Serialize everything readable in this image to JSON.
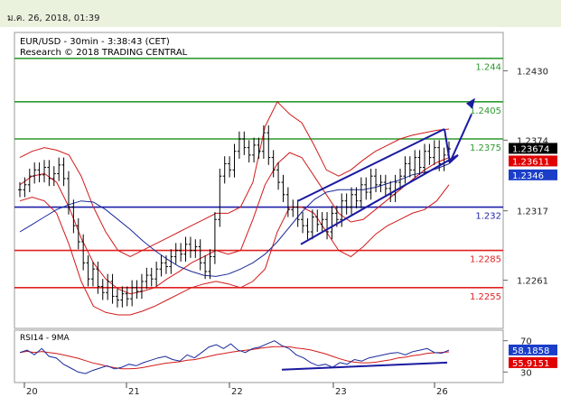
{
  "header": {
    "datetime": "ม.ค. 26, 2018, 01:39"
  },
  "chart_data": [
    {
      "type": "candlestick",
      "title": "EUR/USD - 30min - 3:38:43 (CET)",
      "subtitle": "Research © 2018 TRADING CENTRAL",
      "x_tick_labels": [
        "20",
        "21",
        "22",
        "23",
        "26"
      ],
      "y_tick_labels": [
        "1.2430",
        "1.2374",
        "1.2317",
        "1.2261"
      ],
      "ylim": [
        1.2225,
        1.2458
      ],
      "levels": [
        {
          "label": "1.244",
          "value": 1.244,
          "color": "#2e9a2e"
        },
        {
          "label": "1.2405",
          "value": 1.2405,
          "color": "#2e9a2e"
        },
        {
          "label": "1.2375",
          "value": 1.2375,
          "color": "#2e9a2e"
        },
        {
          "label": "1.232",
          "value": 1.232,
          "color": "#1f1fa8"
        },
        {
          "label": "1.2285",
          "value": 1.2285,
          "color": "#e02020"
        },
        {
          "label": "1.2255",
          "value": 1.2255,
          "color": "#e02020"
        }
      ],
      "price_badges": [
        {
          "label": "1.23674",
          "value": 1.23674,
          "color": "#000000"
        },
        {
          "label": "1.23611",
          "value": 1.23611,
          "color": "#e00000"
        },
        {
          "label": "1.2346",
          "value": 1.2346,
          "color": "#1a3ec8"
        }
      ],
      "close_series": [
        1.2334,
        1.2338,
        1.2345,
        1.235,
        1.2346,
        1.2352,
        1.2343,
        1.2347,
        1.2354,
        1.2343,
        1.232,
        1.2305,
        1.2292,
        1.2275,
        1.2262,
        1.227,
        1.2256,
        1.2251,
        1.226,
        1.2248,
        1.2245,
        1.225,
        1.2246,
        1.2255,
        1.2252,
        1.226,
        1.2265,
        1.2262,
        1.227,
        1.2275,
        1.2272,
        1.228,
        1.2285,
        1.2282,
        1.229,
        1.2285,
        1.2288,
        1.2275,
        1.2268,
        1.228,
        1.231,
        1.2345,
        1.2355,
        1.235,
        1.2365,
        1.2375,
        1.2368,
        1.2362,
        1.237,
        1.2365,
        1.238,
        1.236,
        1.235,
        1.234,
        1.233,
        1.2318,
        1.232,
        1.231,
        1.2305,
        1.23,
        1.2312,
        1.2306,
        1.231,
        1.23,
        1.2315,
        1.231,
        1.2325,
        1.232,
        1.233,
        1.2325,
        1.2338,
        1.2332,
        1.2345,
        1.2338,
        1.234,
        1.2335,
        1.233,
        1.234,
        1.2345,
        1.2355,
        1.235,
        1.236,
        1.2352,
        1.2365,
        1.236,
        1.2368,
        1.2355,
        1.2362,
        1.2367
      ],
      "moving_average_blue": [
        1.23,
        1.2306,
        1.2312,
        1.2318,
        1.2322,
        1.2325,
        1.2324,
        1.2318,
        1.231,
        1.2302,
        1.2293,
        1.2285,
        1.2278,
        1.2272,
        1.2268,
        1.2265,
        1.2264,
        1.2266,
        1.227,
        1.2275,
        1.2282,
        1.2292,
        1.2304,
        1.2316,
        1.2326,
        1.2332,
        1.2334,
        1.2334,
        1.2334,
        1.2336,
        1.2339,
        1.2342,
        1.2346,
        1.2348,
        1.2351,
        1.2355
      ],
      "ma_red": [
        1.2338,
        1.2345,
        1.2347,
        1.234,
        1.232,
        1.2295,
        1.2275,
        1.2262,
        1.2254,
        1.225,
        1.2252,
        1.2255,
        1.2262,
        1.2268,
        1.2275,
        1.228,
        1.2285,
        1.2282,
        1.2285,
        1.231,
        1.2338,
        1.2355,
        1.2364,
        1.236,
        1.2345,
        1.233,
        1.2315,
        1.2308,
        1.231,
        1.2318,
        1.2326,
        1.2334,
        1.2342,
        1.235,
        1.2356,
        1.236
      ],
      "bollinger_upper": [
        1.236,
        1.2365,
        1.2368,
        1.2366,
        1.2362,
        1.2345,
        1.232,
        1.23,
        1.2285,
        1.228,
        1.2285,
        1.229,
        1.2295,
        1.23,
        1.2305,
        1.231,
        1.2315,
        1.2315,
        1.232,
        1.234,
        1.2385,
        1.2405,
        1.2395,
        1.2388,
        1.237,
        1.235,
        1.2345,
        1.235,
        1.2358,
        1.2365,
        1.237,
        1.2375,
        1.2378,
        1.238,
        1.2382,
        1.2383
      ],
      "bollinger_lower": [
        1.2325,
        1.2328,
        1.2325,
        1.2315,
        1.229,
        1.226,
        1.224,
        1.2235,
        1.2233,
        1.2233,
        1.2236,
        1.224,
        1.2245,
        1.225,
        1.2255,
        1.2258,
        1.226,
        1.2258,
        1.2255,
        1.226,
        1.227,
        1.23,
        1.232,
        1.232,
        1.2315,
        1.23,
        1.2285,
        1.228,
        1.2288,
        1.2298,
        1.2305,
        1.231,
        1.2315,
        1.2318,
        1.2325,
        1.2338
      ]
    },
    {
      "type": "line",
      "title": "RSI14 - 9MA",
      "y_tick_labels": [
        "70",
        "30"
      ],
      "ylim": [
        20,
        80
      ],
      "value_badges": [
        {
          "label": "58.1858",
          "value": 58.1858,
          "color": "#1a3ec8"
        },
        {
          "label": "55.9151",
          "value": 55.9151,
          "color": "#e00000"
        }
      ],
      "rsi_series": [
        55,
        58,
        52,
        60,
        50,
        48,
        40,
        35,
        30,
        28,
        32,
        35,
        38,
        34,
        36,
        40,
        38,
        42,
        45,
        48,
        50,
        46,
        44,
        52,
        48,
        55,
        62,
        65,
        60,
        66,
        58,
        55,
        60,
        62,
        66,
        70,
        64,
        60,
        52,
        48,
        42,
        38,
        40,
        36,
        42,
        40,
        46,
        44,
        48,
        50,
        52,
        54,
        55,
        52,
        56,
        58,
        60,
        55,
        54,
        58
      ]
    }
  ]
}
